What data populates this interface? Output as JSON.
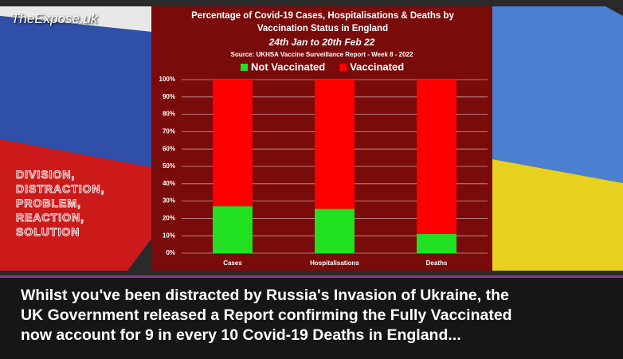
{
  "watermark": "TheExpose.uk",
  "side_text": [
    "DIVISION,",
    "DISTRACTION,",
    "PROBLEM,",
    "REACTION,",
    "SOLUTION"
  ],
  "caption": [
    "Whilst you've been distracted by Russia's Invasion of Ukraine, the",
    "UK Government released a Report confirming the Fully Vaccinated",
    "now account for 9 in every 10 Covid-19 Deaths in England..."
  ],
  "chart_data": {
    "type": "stacked_bar",
    "title": "Percentage of Covid-19 Cases, Hospitalisations & Deaths by Vaccination Status in England",
    "subtitle": "24th Jan to 20th Feb 22",
    "source": "Source: UKHSA Vaccine Surveillance Report - Week 8 - 2022",
    "categories": [
      "Cases",
      "Hospitalisations",
      "Deaths"
    ],
    "series": [
      {
        "name": "Not Vaccinated",
        "color": "#22e022",
        "values": [
          27,
          25.5,
          11
        ]
      },
      {
        "name": "Vaccinated",
        "color": "#ff0000",
        "values": [
          73,
          74.5,
          89
        ]
      }
    ],
    "ylim": [
      0,
      100
    ],
    "yticks": [
      {
        "value": 0,
        "label": "0%"
      },
      {
        "value": 10,
        "label": "10%"
      },
      {
        "value": 20,
        "label": "20%"
      },
      {
        "value": 30,
        "label": "30%"
      },
      {
        "value": 40,
        "label": "40%"
      },
      {
        "value": 50,
        "label": "50%"
      },
      {
        "value": 60,
        "label": "60%"
      },
      {
        "value": 70,
        "label": "70%"
      },
      {
        "value": 80,
        "label": "80%"
      },
      {
        "value": 90,
        "label": "90%"
      },
      {
        "value": 100,
        "label": "100%"
      }
    ],
    "grid": true,
    "legend": "top"
  }
}
